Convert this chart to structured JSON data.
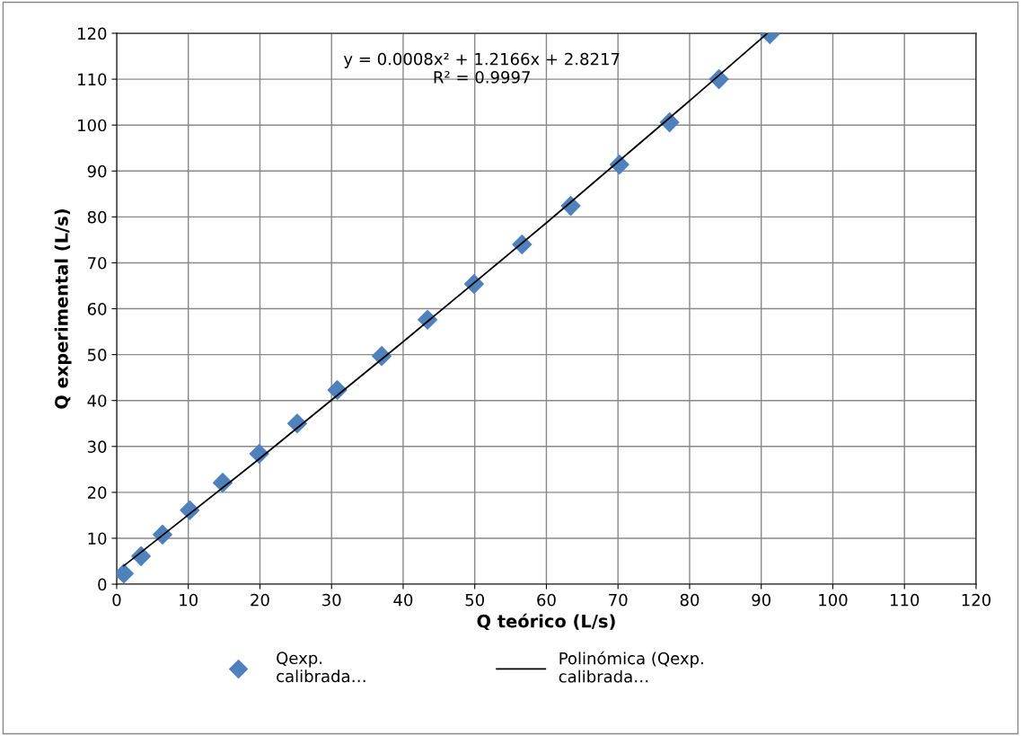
{
  "chart_data": {
    "type": "scatter",
    "xlabel": "Q teórico (L/s)",
    "ylabel": "Q experimental (L/s)",
    "xlim": [
      0,
      120
    ],
    "xticks": [
      0,
      10,
      20,
      30,
      40,
      50,
      60,
      70,
      80,
      90,
      100,
      110,
      120
    ],
    "ylim": [
      0,
      120
    ],
    "yticks": [
      0,
      10,
      20,
      30,
      40,
      50,
      60,
      70,
      80,
      90,
      100,
      110,
      120
    ],
    "grid": true,
    "legend": "bottom",
    "marker": "diamond",
    "series": [
      {
        "name": "Qexp.\ncalibrada…",
        "color": "#4f81bd",
        "x": [
          1.0,
          3.4,
          6.4,
          10.2,
          14.8,
          19.9,
          25.2,
          30.8,
          37.0,
          43.4,
          49.9,
          56.6,
          63.4,
          70.2,
          77.2,
          84.1,
          91.2
        ],
        "values": [
          2.3,
          6.1,
          10.8,
          16.1,
          22.1,
          28.4,
          35.0,
          42.3,
          49.7,
          57.6,
          65.4,
          74.0,
          82.4,
          91.4,
          100.6,
          110.0,
          119.8
        ]
      },
      {
        "name": "Polinómica (Qexp.\ncalibrada…",
        "type": "line",
        "color": "#000000",
        "line_style": "solid",
        "marker": "none",
        "x": [
          1.0,
          20,
          40,
          60,
          80,
          90.8
        ],
        "values": [
          4.0,
          27.4,
          52.8,
          78.7,
          105.3,
          119.9
        ]
      }
    ],
    "annotations": [
      "y = 0.0008x² + 1.2166x + 2.8217\nR² = 0.9997"
    ]
  }
}
